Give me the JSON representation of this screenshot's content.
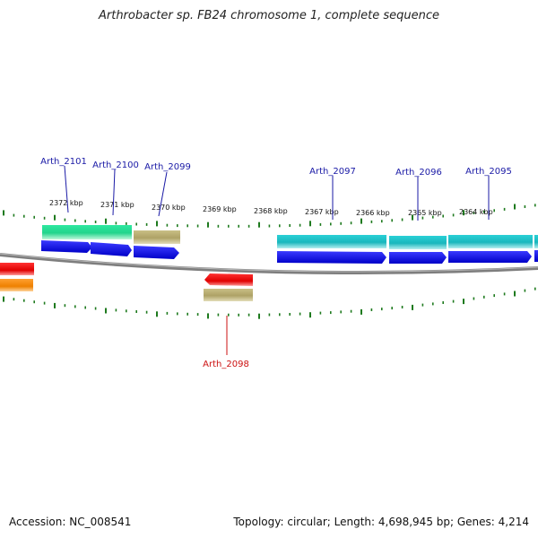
{
  "title": "Arthrobacter sp. FB24 chromosome 1, complete sequence",
  "footer": {
    "accession": "Accession: NC_008541",
    "summary": "Topology: circular; Length: 4,698,945 bp; Genes: 4,214"
  },
  "scale_labels": [
    "2372 kbp",
    "2371 kbp",
    "2370 kbp",
    "2369 kbp",
    "2368 kbp",
    "2367 kbp",
    "2366 kbp",
    "2365 kbp",
    "2364 kbp"
  ],
  "gene_labels": {
    "arth_2101": "Arth_2101",
    "arth_2100": "Arth_2100",
    "arth_2099": "Arth_2099",
    "arth_2097": "Arth_2097",
    "arth_2096": "Arth_2096",
    "arth_2095": "Arth_2095",
    "arth_2098": "Arth_2098"
  },
  "colors": {
    "forward_label": "#1a1aa6",
    "reverse_label": "#cc1111",
    "tick": "#1e7a1e",
    "backbone": "#8a8a8a",
    "cds": "#1010dd",
    "green_feature": "#2ee8a0",
    "tan_feature": "#bdb27a",
    "cyan_feature": "#22c6cc",
    "red_feature": "#ee1111",
    "orange_feature": "#f08a10"
  }
}
